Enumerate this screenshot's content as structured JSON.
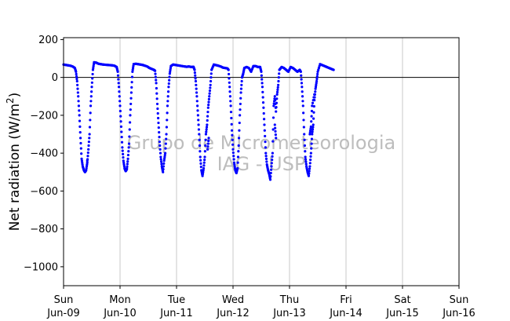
{
  "chart_data": {
    "type": "scatter",
    "title": "",
    "ylabel_main": "Net radiation (W/m",
    "ylabel_sup": "2",
    "ylabel_close": ")",
    "watermark": [
      "Grupo de Micrometeorologia",
      "IAG - USP"
    ],
    "ylim": [
      -1100,
      210
    ],
    "yticks": [
      200,
      0,
      -200,
      -400,
      -600,
      -800,
      -1000
    ],
    "ytick_labels": [
      "200",
      "0",
      "−200",
      "−400",
      "−600",
      "−800",
      "−1000"
    ],
    "xlim": [
      0,
      7
    ],
    "xticks": [
      {
        "day": "Sun",
        "date": "Jun-09"
      },
      {
        "day": "Mon",
        "date": "Jun-10"
      },
      {
        "day": "Tue",
        "date": "Jun-11"
      },
      {
        "day": "Wed",
        "date": "Jun-12"
      },
      {
        "day": "Thu",
        "date": "Jun-13"
      },
      {
        "day": "Fri",
        "date": "Jun-14"
      },
      {
        "day": "Sat",
        "date": "Jun-15"
      },
      {
        "day": "Sun",
        "date": "Jun-16"
      }
    ],
    "grid_x": true,
    "zero_line": true,
    "marker_color": "#0000ff",
    "series": [
      {
        "points": [
          [
            0.0,
            68
          ],
          [
            0.04,
            66
          ],
          [
            0.08,
            64
          ],
          [
            0.12,
            62
          ],
          [
            0.16,
            58
          ],
          [
            0.2,
            50
          ],
          [
            0.22,
            30
          ],
          [
            0.24,
            -20
          ],
          [
            0.26,
            -100
          ],
          [
            0.28,
            -200
          ],
          [
            0.3,
            -320
          ],
          [
            0.32,
            -430
          ],
          [
            0.34,
            -470
          ],
          [
            0.36,
            -490
          ],
          [
            0.38,
            -500
          ],
          [
            0.4,
            -490
          ],
          [
            0.42,
            -450
          ],
          [
            0.44,
            -380
          ],
          [
            0.46,
            -300
          ],
          [
            0.48,
            -150
          ],
          [
            0.5,
            -50
          ],
          [
            0.52,
            40
          ],
          [
            0.54,
            80
          ],
          [
            0.58,
            78
          ],
          [
            0.62,
            72
          ],
          [
            0.66,
            70
          ],
          [
            0.7,
            68
          ],
          [
            0.74,
            67
          ],
          [
            0.78,
            66
          ],
          [
            0.82,
            65
          ],
          [
            0.86,
            64
          ],
          [
            0.9,
            62
          ],
          [
            0.94,
            55
          ],
          [
            0.96,
            30
          ],
          [
            0.98,
            -50
          ],
          [
            1.0,
            -150
          ],
          [
            1.02,
            -260
          ],
          [
            1.04,
            -370
          ],
          [
            1.06,
            -440
          ],
          [
            1.08,
            -480
          ],
          [
            1.1,
            -495
          ],
          [
            1.12,
            -485
          ],
          [
            1.14,
            -430
          ],
          [
            1.16,
            -350
          ],
          [
            1.18,
            -200
          ],
          [
            1.2,
            -80
          ],
          [
            1.22,
            30
          ],
          [
            1.24,
            70
          ],
          [
            1.28,
            72
          ],
          [
            1.32,
            70
          ],
          [
            1.36,
            68
          ],
          [
            1.4,
            66
          ],
          [
            1.44,
            62
          ],
          [
            1.48,
            58
          ],
          [
            1.52,
            50
          ],
          [
            1.56,
            45
          ],
          [
            1.6,
            40
          ],
          [
            1.62,
            35
          ],
          [
            1.64,
            -30
          ],
          [
            1.66,
            -140
          ],
          [
            1.68,
            -240
          ],
          [
            1.7,
            -340
          ],
          [
            1.72,
            -420
          ],
          [
            1.74,
            -470
          ],
          [
            1.76,
            -500
          ],
          [
            1.78,
            -440
          ],
          [
            1.8,
            -400
          ],
          [
            1.82,
            -300
          ],
          [
            1.84,
            -150
          ],
          [
            1.86,
            -50
          ],
          [
            1.88,
            20
          ],
          [
            1.9,
            60
          ],
          [
            1.94,
            68
          ],
          [
            1.98,
            66
          ],
          [
            2.02,
            64
          ],
          [
            2.06,
            62
          ],
          [
            2.1,
            60
          ],
          [
            2.14,
            58
          ],
          [
            2.18,
            56
          ],
          [
            2.22,
            58
          ],
          [
            2.26,
            55
          ],
          [
            2.3,
            56
          ],
          [
            2.32,
            40
          ],
          [
            2.34,
            -20
          ],
          [
            2.36,
            -100
          ],
          [
            2.38,
            -200
          ],
          [
            2.4,
            -300
          ],
          [
            2.42,
            -420
          ],
          [
            2.44,
            -490
          ],
          [
            2.46,
            -520
          ],
          [
            2.48,
            -480
          ],
          [
            2.5,
            -420
          ],
          [
            2.52,
            -300
          ],
          [
            2.54,
            -250
          ],
          [
            2.56,
            -160
          ],
          [
            2.58,
            -100
          ],
          [
            2.6,
            -40
          ],
          [
            2.62,
            40
          ],
          [
            2.66,
            68
          ],
          [
            2.7,
            65
          ],
          [
            2.74,
            62
          ],
          [
            2.78,
            58
          ],
          [
            2.82,
            52
          ],
          [
            2.86,
            50
          ],
          [
            2.9,
            48
          ],
          [
            2.92,
            40
          ],
          [
            2.94,
            -50
          ],
          [
            2.96,
            -150
          ],
          [
            2.98,
            -280
          ],
          [
            3.0,
            -380
          ],
          [
            3.02,
            -450
          ],
          [
            3.04,
            -490
          ],
          [
            3.06,
            -505
          ],
          [
            3.08,
            -480
          ],
          [
            3.1,
            -360
          ],
          [
            3.12,
            -200
          ],
          [
            3.14,
            -80
          ],
          [
            3.16,
            0
          ],
          [
            3.18,
            20
          ],
          [
            3.2,
            50
          ],
          [
            3.24,
            55
          ],
          [
            3.28,
            50
          ],
          [
            3.32,
            30
          ],
          [
            3.36,
            60
          ],
          [
            3.4,
            60
          ],
          [
            3.44,
            55
          ],
          [
            3.48,
            55
          ],
          [
            3.5,
            30
          ],
          [
            3.52,
            -50
          ],
          [
            3.54,
            -160
          ],
          [
            3.56,
            -280
          ],
          [
            3.58,
            -400
          ],
          [
            3.6,
            -460
          ],
          [
            3.62,
            -490
          ],
          [
            3.64,
            -510
          ],
          [
            3.66,
            -540
          ],
          [
            3.68,
            -470
          ],
          [
            3.7,
            -400
          ],
          [
            3.72,
            -150
          ],
          [
            3.74,
            -100
          ],
          [
            3.76,
            -180
          ],
          [
            3.78,
            -90
          ],
          [
            3.8,
            -40
          ],
          [
            3.82,
            40
          ],
          [
            3.86,
            55
          ],
          [
            3.9,
            50
          ],
          [
            3.94,
            40
          ],
          [
            3.98,
            30
          ],
          [
            4.02,
            55
          ],
          [
            4.06,
            50
          ],
          [
            4.1,
            40
          ],
          [
            4.14,
            30
          ],
          [
            4.18,
            40
          ],
          [
            4.2,
            30
          ],
          [
            4.22,
            -50
          ],
          [
            4.24,
            -150
          ],
          [
            4.26,
            -300
          ],
          [
            4.28,
            -420
          ],
          [
            4.3,
            -470
          ],
          [
            4.32,
            -500
          ],
          [
            4.34,
            -520
          ],
          [
            4.36,
            -470
          ],
          [
            4.38,
            -400
          ],
          [
            4.4,
            -300
          ],
          [
            4.42,
            -250
          ],
          [
            4.44,
            -120
          ],
          [
            4.46,
            -60
          ],
          [
            4.48,
            -20
          ],
          [
            4.5,
            30
          ],
          [
            4.54,
            70
          ],
          [
            4.58,
            65
          ],
          [
            4.62,
            60
          ],
          [
            4.66,
            55
          ],
          [
            4.7,
            50
          ],
          [
            4.74,
            45
          ],
          [
            4.78,
            40
          ],
          [
            2.55,
            -380
          ],
          [
            2.57,
            -320
          ],
          [
            3.74,
            -250
          ],
          [
            3.76,
            -320
          ],
          [
            4.36,
            -300
          ],
          [
            4.38,
            -260
          ],
          [
            4.4,
            -150
          ],
          [
            4.44,
            -90
          ],
          [
            0.42,
            -440
          ],
          [
            1.12,
            -480
          ]
        ]
      }
    ]
  }
}
